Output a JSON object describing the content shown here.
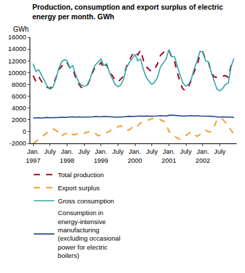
{
  "chart_data": {
    "type": "line",
    "title": "Production, consumption and export surplus of electric energy per month. GWh",
    "ylabel": "GWh",
    "categories": [
      "Jan. 1997",
      null,
      null,
      null,
      null,
      null,
      "July",
      null,
      null,
      null,
      null,
      null,
      "Jan. 1998",
      null,
      null,
      null,
      null,
      null,
      "July",
      null,
      null,
      null,
      null,
      null,
      "Jan. 1999",
      null,
      null,
      null,
      null,
      null,
      "July",
      null,
      null,
      null,
      null,
      null,
      "Jan. 2000",
      null,
      null,
      null,
      null,
      null,
      "July",
      null,
      null,
      null,
      null,
      null,
      "Jan. 2001",
      null,
      null,
      null,
      null,
      null,
      "July",
      null,
      null,
      null,
      null,
      null,
      "Jan. 2002",
      null,
      null,
      null,
      null,
      null,
      "July",
      null,
      null,
      null,
      null,
      null
    ],
    "series": [
      {
        "name": "Total production",
        "color": "#a3001f",
        "line_style": "dash",
        "values": [
          9500,
          8500,
          9300,
          8500,
          8000,
          7500,
          7300,
          8000,
          9000,
          10500,
          11000,
          11800,
          11700,
          10800,
          10700,
          9200,
          8200,
          7500,
          7400,
          7700,
          8700,
          10000,
          11000,
          11100,
          11700,
          10700,
          11400,
          10000,
          9500,
          8700,
          8400,
          8900,
          9400,
          11000,
          12000,
          13000,
          13600,
          13000,
          13800,
          12100,
          11000,
          10500,
          10200,
          10600,
          11500,
          12900,
          13400,
          13800,
          13900,
          12500,
          11900,
          9900,
          8200,
          7200,
          7000,
          7600,
          9000,
          10200,
          11200,
          13100,
          13500,
          12200,
          11800,
          10000,
          9300,
          9200,
          9200,
          9400,
          9500,
          9200,
          11200,
          12000
        ]
      },
      {
        "name": "Export surplus",
        "color": "#f0a030",
        "line_style": "dash",
        "values": [
          -2000,
          -1700,
          -1200,
          -1000,
          -500,
          -200,
          100,
          500,
          200,
          -100,
          -800,
          -400,
          -300,
          0,
          -500,
          -500,
          -300,
          -400,
          -300,
          -100,
          0,
          -300,
          -300,
          -700,
          -600,
          -500,
          -100,
          0,
          500,
          700,
          800,
          1000,
          500,
          200,
          300,
          700,
          500,
          1000,
          1500,
          1600,
          1800,
          2000,
          2200,
          2200,
          2300,
          2000,
          1800,
          1500,
          0,
          -200,
          -800,
          -1100,
          -1300,
          -1000,
          -700,
          -400,
          0,
          -500,
          -800,
          -500,
          0,
          200,
          0,
          0,
          800,
          2000,
          2300,
          2100,
          1500,
          1000,
          200,
          -400
        ]
      },
      {
        "name": "Gross consumption",
        "color": "#2aa5a5",
        "line_style": "solid",
        "values": [
          11500,
          10200,
          10500,
          9500,
          8500,
          7700,
          7200,
          7500,
          8800,
          10600,
          11800,
          12200,
          12000,
          10800,
          11200,
          9700,
          8500,
          7900,
          7700,
          7800,
          8700,
          10300,
          11300,
          11800,
          12300,
          11200,
          11500,
          10000,
          9000,
          8000,
          7600,
          7900,
          8900,
          10800,
          11700,
          12300,
          13100,
          12000,
          12300,
          10500,
          9200,
          8500,
          8000,
          8400,
          9200,
          10900,
          11600,
          12300,
          13900,
          12700,
          12700,
          11000,
          9500,
          8200,
          7700,
          8000,
          9000,
          10700,
          12000,
          13600,
          13500,
          12000,
          11800,
          10000,
          8500,
          7200,
          6900,
          7300,
          8000,
          8200,
          11000,
          12400
        ]
      },
      {
        "name": "Consumption in energy-intensive manufacturing (excluding occasional power for electric boilers)",
        "color": "#1f3c88",
        "line_style": "solid",
        "values": [
          2300,
          2350,
          2350,
          2300,
          2350,
          2400,
          2350,
          2350,
          2400,
          2400,
          2450,
          2400,
          2450,
          2500,
          2500,
          2450,
          2500,
          2450,
          2450,
          2500,
          2500,
          2500,
          2550,
          2500,
          2500,
          2550,
          2550,
          2500,
          2500,
          2450,
          2450,
          2500,
          2500,
          2550,
          2600,
          2550,
          2600,
          2650,
          2650,
          2600,
          2650,
          2600,
          2600,
          2650,
          2650,
          2700,
          2700,
          2650,
          2750,
          2800,
          2750,
          2700,
          2700,
          2650,
          2650,
          2700,
          2700,
          2650,
          2700,
          2650,
          2650,
          2650,
          2600,
          2600,
          2550,
          2500,
          2450,
          2500,
          2500,
          2450,
          2450,
          2400
        ]
      }
    ],
    "ylim": [
      -2000,
      16000
    ],
    "yticks": [
      -2000,
      0,
      2000,
      4000,
      6000,
      8000,
      10000,
      12000,
      14000,
      16000
    ],
    "grid": false,
    "legend": "bottom"
  }
}
